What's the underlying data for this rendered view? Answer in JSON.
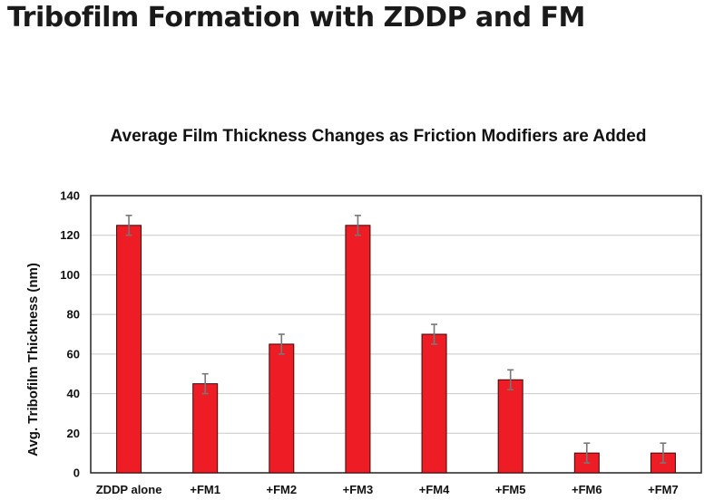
{
  "page_title": "Tribofilm Formation with ZDDP and FM",
  "colors": {
    "bar": "#ee1c24",
    "bar_stroke": "#3a0a0a",
    "error_bar": "#777777",
    "grid": "#c8c8c8"
  },
  "chart_data": {
    "type": "bar",
    "title": "Average Film Thickness Changes as Friction Modifiers are Added",
    "xlabel": "",
    "ylabel": "Avg. Tribofilm Thickness (nm)",
    "categories": [
      "ZDDP alone",
      "+FM1",
      "+FM2",
      "+FM3",
      "+FM4",
      "+FM5",
      "+FM6",
      "+FM7"
    ],
    "values": [
      125,
      45,
      65,
      125,
      70,
      47,
      10,
      10
    ],
    "error": [
      5,
      5,
      5,
      5,
      5,
      5,
      5,
      5
    ],
    "ylim": [
      0,
      140
    ],
    "yticks": [
      "0",
      "20",
      "40",
      "60",
      "80",
      "100",
      "120",
      "140"
    ],
    "grid": true,
    "legend": "none"
  }
}
